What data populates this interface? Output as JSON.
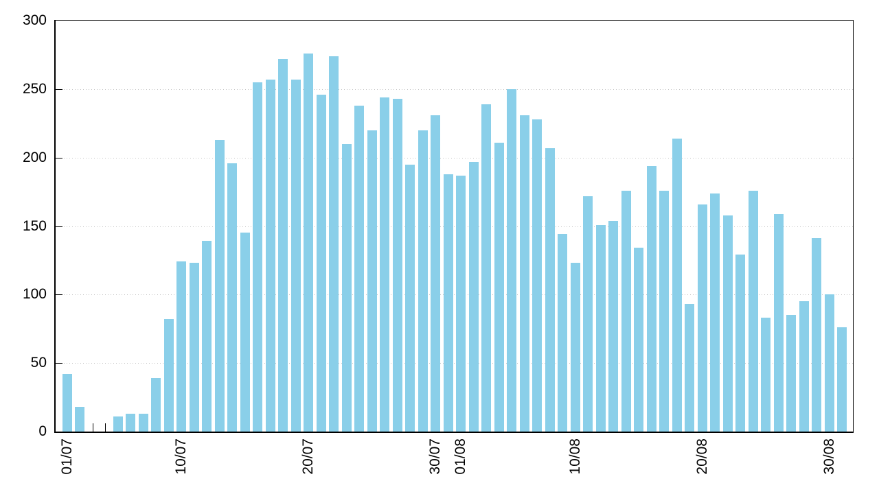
{
  "chart_data": {
    "type": "bar",
    "title": "",
    "xlabel": "",
    "ylabel": "",
    "legend": "none",
    "grid": "horizontal dotted lines at y ticks 50-250, drawn behind bars",
    "ylim": [
      0,
      300
    ],
    "y_ticks": [
      0,
      50,
      100,
      150,
      200,
      250,
      300
    ],
    "x_tick_labels": [
      "01/07",
      "10/07",
      "20/07",
      "30/07",
      "01/08",
      "10/08",
      "20/08",
      "30/08"
    ],
    "x_tick_indices": [
      0,
      9,
      19,
      29,
      31,
      40,
      50,
      60
    ],
    "bar_color": "#8ACFE9",
    "grid_color": "#c4c4c4",
    "axis_color": "#000000",
    "background_color": "#ffffff",
    "categories": [
      "01/07",
      "02/07",
      "03/07",
      "04/07",
      "05/07",
      "06/07",
      "07/07",
      "08/07",
      "09/07",
      "10/07",
      "11/07",
      "12/07",
      "13/07",
      "14/07",
      "15/07",
      "16/07",
      "17/07",
      "18/07",
      "19/07",
      "20/07",
      "21/07",
      "22/07",
      "23/07",
      "24/07",
      "25/07",
      "26/07",
      "27/07",
      "28/07",
      "29/07",
      "30/07",
      "31/07",
      "01/08",
      "02/08",
      "03/08",
      "04/08",
      "05/08",
      "06/08",
      "07/08",
      "08/08",
      "09/08",
      "10/08",
      "11/08",
      "12/08",
      "13/08",
      "14/08",
      "15/08",
      "16/08",
      "17/08",
      "18/08",
      "19/08",
      "20/08",
      "21/08",
      "22/08",
      "23/08",
      "24/08",
      "25/08",
      "26/08",
      "27/08",
      "28/08",
      "29/08",
      "30/08",
      "31/08"
    ],
    "values": [
      42,
      18,
      0,
      0,
      11,
      13,
      13,
      39,
      82,
      124,
      123,
      139,
      213,
      196,
      145,
      255,
      257,
      272,
      257,
      276,
      246,
      274,
      210,
      238,
      220,
      244,
      243,
      195,
      220,
      231,
      188,
      187,
      197,
      239,
      211,
      250,
      231,
      228,
      207,
      144,
      123,
      172,
      151,
      154,
      176,
      134,
      194,
      176,
      214,
      93,
      166,
      174,
      158,
      129,
      176,
      83,
      159,
      85,
      95,
      141,
      100,
      76
    ]
  }
}
